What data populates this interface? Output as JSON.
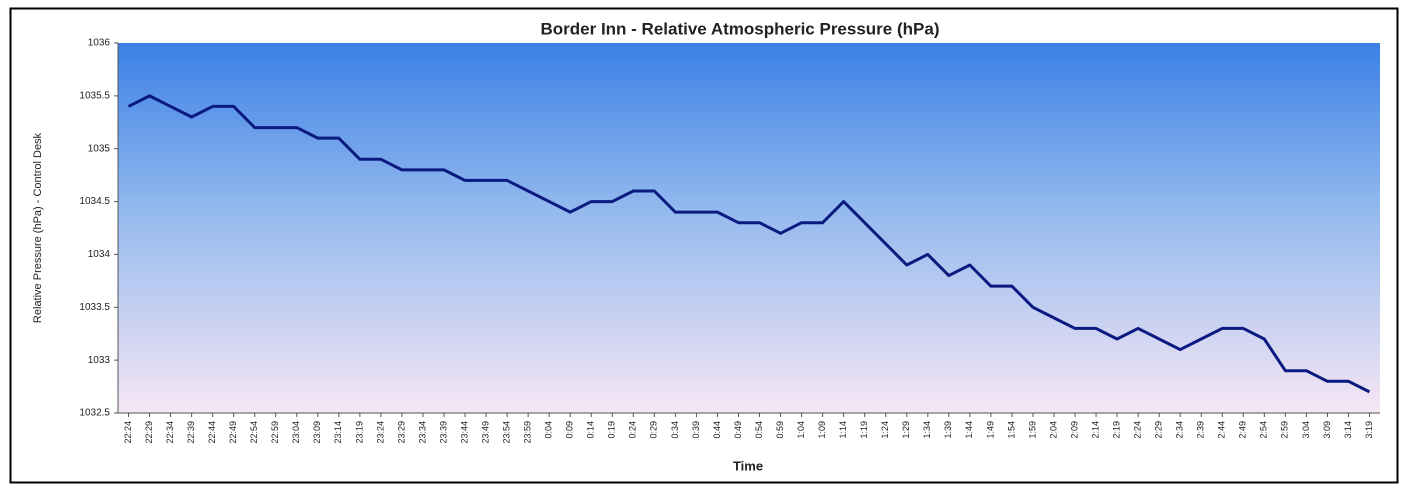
{
  "chart_data": {
    "type": "line",
    "title": "Border Inn - Relative Atmospheric Pressure (hPa)",
    "x_label": "Time",
    "y_label": "Relative Pressure (hPa) - Control Desk",
    "categories": [
      "22:24",
      "22:29",
      "22:34",
      "22:39",
      "22:44",
      "22:49",
      "22:54",
      "22:59",
      "23:04",
      "23:09",
      "23:14",
      "23:19",
      "23:24",
      "23:29",
      "23:34",
      "23:39",
      "23:44",
      "23:49",
      "23:54",
      "23:59",
      "0:04",
      "0:09",
      "0:14",
      "0:19",
      "0:24",
      "0:29",
      "0:34",
      "0:39",
      "0:44",
      "0:49",
      "0:54",
      "0:59",
      "1:04",
      "1:09",
      "1:14",
      "1:19",
      "1:24",
      "1:29",
      "1:34",
      "1:39",
      "1:44",
      "1:49",
      "1:54",
      "1:59",
      "2:04",
      "2:09",
      "2:14",
      "2:19",
      "2:24",
      "2:29",
      "2:34",
      "2:39",
      "2:44",
      "2:49",
      "2:54",
      "2:59",
      "3:04",
      "3:09",
      "3:14",
      "3:19"
    ],
    "values": [
      1035.4,
      1035.5,
      1035.4,
      1035.3,
      1035.4,
      1035.4,
      1035.2,
      1035.2,
      1035.2,
      1035.1,
      1035.1,
      1034.9,
      1034.9,
      1034.8,
      1034.8,
      1034.8,
      1034.7,
      1034.7,
      1034.7,
      1034.6,
      1034.5,
      1034.4,
      1034.5,
      1034.5,
      1034.6,
      1034.6,
      1034.4,
      1034.4,
      1034.4,
      1034.3,
      1034.3,
      1034.2,
      1034.3,
      1034.3,
      1034.5,
      1034.3,
      1034.1,
      1033.9,
      1034,
      1033.8,
      1033.9,
      1033.7,
      1033.7,
      1033.5,
      1033.4,
      1033.3,
      1033.3,
      1033.2,
      1033.3,
      1033.2,
      1033.1,
      1033.2,
      1033.3,
      1033.3,
      1033.2,
      1032.9,
      1032.9,
      1032.8,
      1032.8,
      1032.7
    ],
    "color": "#0a1a80",
    "ylim": [
      1032.5,
      1036
    ],
    "yticks": [
      1032.5,
      1033,
      1033.5,
      1034,
      1034.5,
      1035,
      1035.5,
      1036
    ]
  }
}
